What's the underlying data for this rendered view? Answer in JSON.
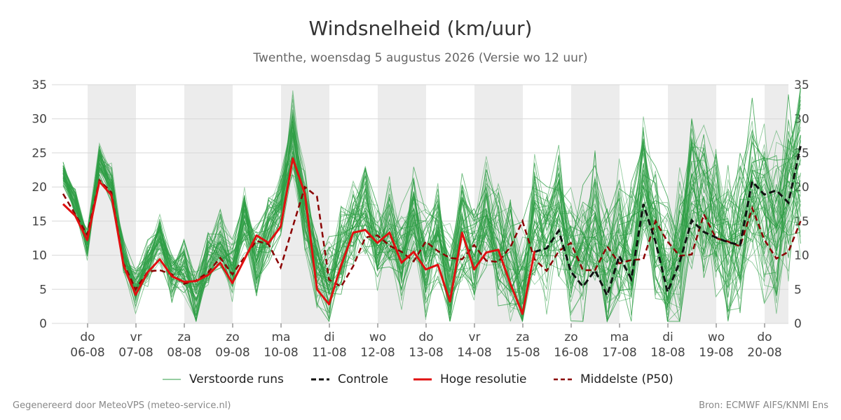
{
  "title": "Windsnelheid (km/uur)",
  "subtitle": "Twenthe, woensdag  5 augustus 2026 (Versie wo 12 uur)",
  "footer_left": "Gegenereerd door MeteoVPS (meteo-service.nl)",
  "footer_right": "Bron: ECMWF AIFS/KNMI Ens",
  "colors": {
    "ensemble": "#2e9e45",
    "control": "#111111",
    "high_res": "#e01010",
    "median": "#8b0000",
    "band": "#ececec",
    "grid": "#d8d8d8"
  },
  "legend": [
    {
      "label": "Verstoorde runs",
      "style": "ensemble"
    },
    {
      "label": "Controle",
      "style": "control"
    },
    {
      "label": "Hoge resolutie",
      "style": "high_res"
    },
    {
      "label": "Middelste (P50)",
      "style": "median"
    }
  ],
  "chart_data": {
    "type": "line",
    "y_ticks": [
      0,
      5,
      10,
      15,
      20,
      25,
      30,
      35
    ],
    "ylim": [
      0,
      35
    ],
    "grid": true,
    "legend_position": "bottom",
    "x_start": "2026-08-05 12:00",
    "x_step_hours": 6,
    "x_end": "2026-08-20 12:00",
    "shaded_days": [
      "06-08",
      "08-08",
      "10-08",
      "12-08",
      "14-08",
      "16-08",
      "18-08",
      "20-08"
    ],
    "x_tick_labels": [
      {
        "day": "do",
        "date": "06-08"
      },
      {
        "day": "vr",
        "date": "07-08"
      },
      {
        "day": "za",
        "date": "08-08"
      },
      {
        "day": "zo",
        "date": "09-08"
      },
      {
        "day": "ma",
        "date": "10-08"
      },
      {
        "day": "di",
        "date": "11-08"
      },
      {
        "day": "wo",
        "date": "12-08"
      },
      {
        "day": "do",
        "date": "13-08"
      },
      {
        "day": "vr",
        "date": "14-08"
      },
      {
        "day": "za",
        "date": "15-08"
      },
      {
        "day": "zo",
        "date": "16-08"
      },
      {
        "day": "ma",
        "date": "17-08"
      },
      {
        "day": "di",
        "date": "18-08"
      },
      {
        "day": "wo",
        "date": "19-08"
      },
      {
        "day": "do",
        "date": "20-08"
      }
    ],
    "series": [
      {
        "name": "Hoge resolutie",
        "style": "high_res",
        "values": [
          17.5,
          15.8,
          12.2,
          20.8,
          18.8,
          8.5,
          4.2,
          7.5,
          9.4,
          6.9,
          6.1,
          6.2,
          7.1,
          8.9,
          5.9,
          9.4,
          12.9,
          11.8,
          14.2,
          24.2,
          19.0,
          5.0,
          2.8,
          8.5,
          13.3,
          13.7,
          11.8,
          13.3,
          8.9,
          10.5,
          7.9,
          8.6,
          3.2,
          13.3,
          7.9,
          10.4,
          10.8,
          5.8,
          1.4,
          10.6
        ]
      },
      {
        "name": "Controle",
        "style": "control",
        "values": [
          null,
          null,
          null,
          null,
          null,
          null,
          null,
          null,
          null,
          null,
          null,
          null,
          null,
          null,
          null,
          null,
          null,
          null,
          null,
          null,
          null,
          null,
          null,
          null,
          null,
          null,
          null,
          null,
          null,
          null,
          null,
          null,
          null,
          null,
          null,
          null,
          null,
          null,
          null,
          10.5,
          11.0,
          13.6,
          7.6,
          5.4,
          7.8,
          4.1,
          9.9,
          6.5,
          17.5,
          12.0,
          4.6,
          9.0,
          15.1,
          13.4,
          12.6,
          11.9,
          11.5,
          20.8,
          18.9,
          19.5,
          17.7,
          26.0
        ]
      },
      {
        "name": "Middelste (P50)",
        "style": "median",
        "values": [
          19.0,
          16.0,
          13.0,
          21.0,
          19.2,
          8.8,
          5.0,
          7.6,
          7.8,
          7.2,
          5.8,
          6.3,
          7.5,
          9.6,
          7.2,
          9.7,
          12.1,
          11.6,
          8.2,
          14.2,
          20.0,
          18.6,
          6.4,
          5.4,
          8.4,
          12.6,
          12.9,
          11.4,
          10.5,
          9.1,
          12.0,
          10.6,
          9.6,
          9.4,
          11.5,
          9.2,
          9.0,
          11.2,
          15.0,
          9.4,
          7.7,
          10.6,
          11.8,
          7.8,
          7.8,
          11.3,
          8.8,
          9.3,
          9.4,
          15.0,
          12.0,
          9.9,
          10.1,
          16.0,
          12.5,
          12.0,
          11.3,
          16.9,
          12.3,
          9.5,
          10.5,
          15.0
        ]
      },
      {
        "name": "Verstoorde runs",
        "style": "ensemble",
        "values": [
          22.0,
          17.5,
          11.5,
          24.0,
          20.5,
          10.0,
          5.0,
          9.0,
          12.5,
          7.0,
          8.0,
          3.5,
          9.0,
          12.0,
          8.5,
          15.0,
          9.0,
          14.0,
          18.0,
          28.0,
          17.0,
          8.5,
          6.0,
          11.0,
          14.0,
          16.5,
          11.0,
          14.0,
          10.0,
          16.0,
          9.0,
          13.0,
          6.0,
          14.0,
          10.0,
          16.0,
          12.0,
          9.0,
          5.0,
          15.0,
          12.0,
          17.0,
          10.0,
          9.0,
          14.0,
          6.0,
          12.0,
          10.0,
          20.0,
          13.0,
          7.0,
          11.0,
          20.0,
          16.0,
          14.0,
          12.0,
          13.0,
          21.0,
          16.0,
          14.0,
          18.0,
          24.0
        ]
      }
    ]
  }
}
